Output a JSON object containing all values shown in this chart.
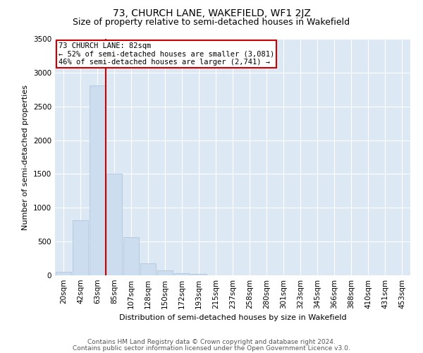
{
  "title": "73, CHURCH LANE, WAKEFIELD, WF1 2JZ",
  "subtitle": "Size of property relative to semi-detached houses in Wakefield",
  "xlabel": "Distribution of semi-detached houses by size in Wakefield",
  "ylabel": "Number of semi-detached properties",
  "bar_color": "#ccddf0",
  "bar_edge_color": "#aabfd8",
  "background_color": "#dce9f5",
  "grid_color": "#ffffff",
  "annotation_box_color": "#cc0000",
  "vline_color": "#cc0000",
  "annotation_text": "73 CHURCH LANE: 82sqm\n← 52% of semi-detached houses are smaller (3,081)\n46% of semi-detached houses are larger (2,741) →",
  "categories": [
    "20sqm",
    "42sqm",
    "63sqm",
    "85sqm",
    "107sqm",
    "128sqm",
    "150sqm",
    "172sqm",
    "193sqm",
    "215sqm",
    "237sqm",
    "258sqm",
    "280sqm",
    "301sqm",
    "323sqm",
    "345sqm",
    "366sqm",
    "388sqm",
    "410sqm",
    "431sqm",
    "453sqm"
  ],
  "values": [
    55,
    810,
    2810,
    1500,
    560,
    175,
    70,
    30,
    25,
    0,
    0,
    0,
    0,
    0,
    0,
    0,
    0,
    0,
    0,
    0,
    0
  ],
  "ylim": [
    0,
    3500
  ],
  "yticks": [
    0,
    500,
    1000,
    1500,
    2000,
    2500,
    3000,
    3500
  ],
  "vline_pos": 2.5,
  "footer_line1": "Contains HM Land Registry data © Crown copyright and database right 2024.",
  "footer_line2": "Contains public sector information licensed under the Open Government Licence v3.0.",
  "title_fontsize": 10,
  "subtitle_fontsize": 9,
  "axis_label_fontsize": 8,
  "tick_fontsize": 7.5,
  "annotation_fontsize": 7.5,
  "footer_fontsize": 6.5
}
